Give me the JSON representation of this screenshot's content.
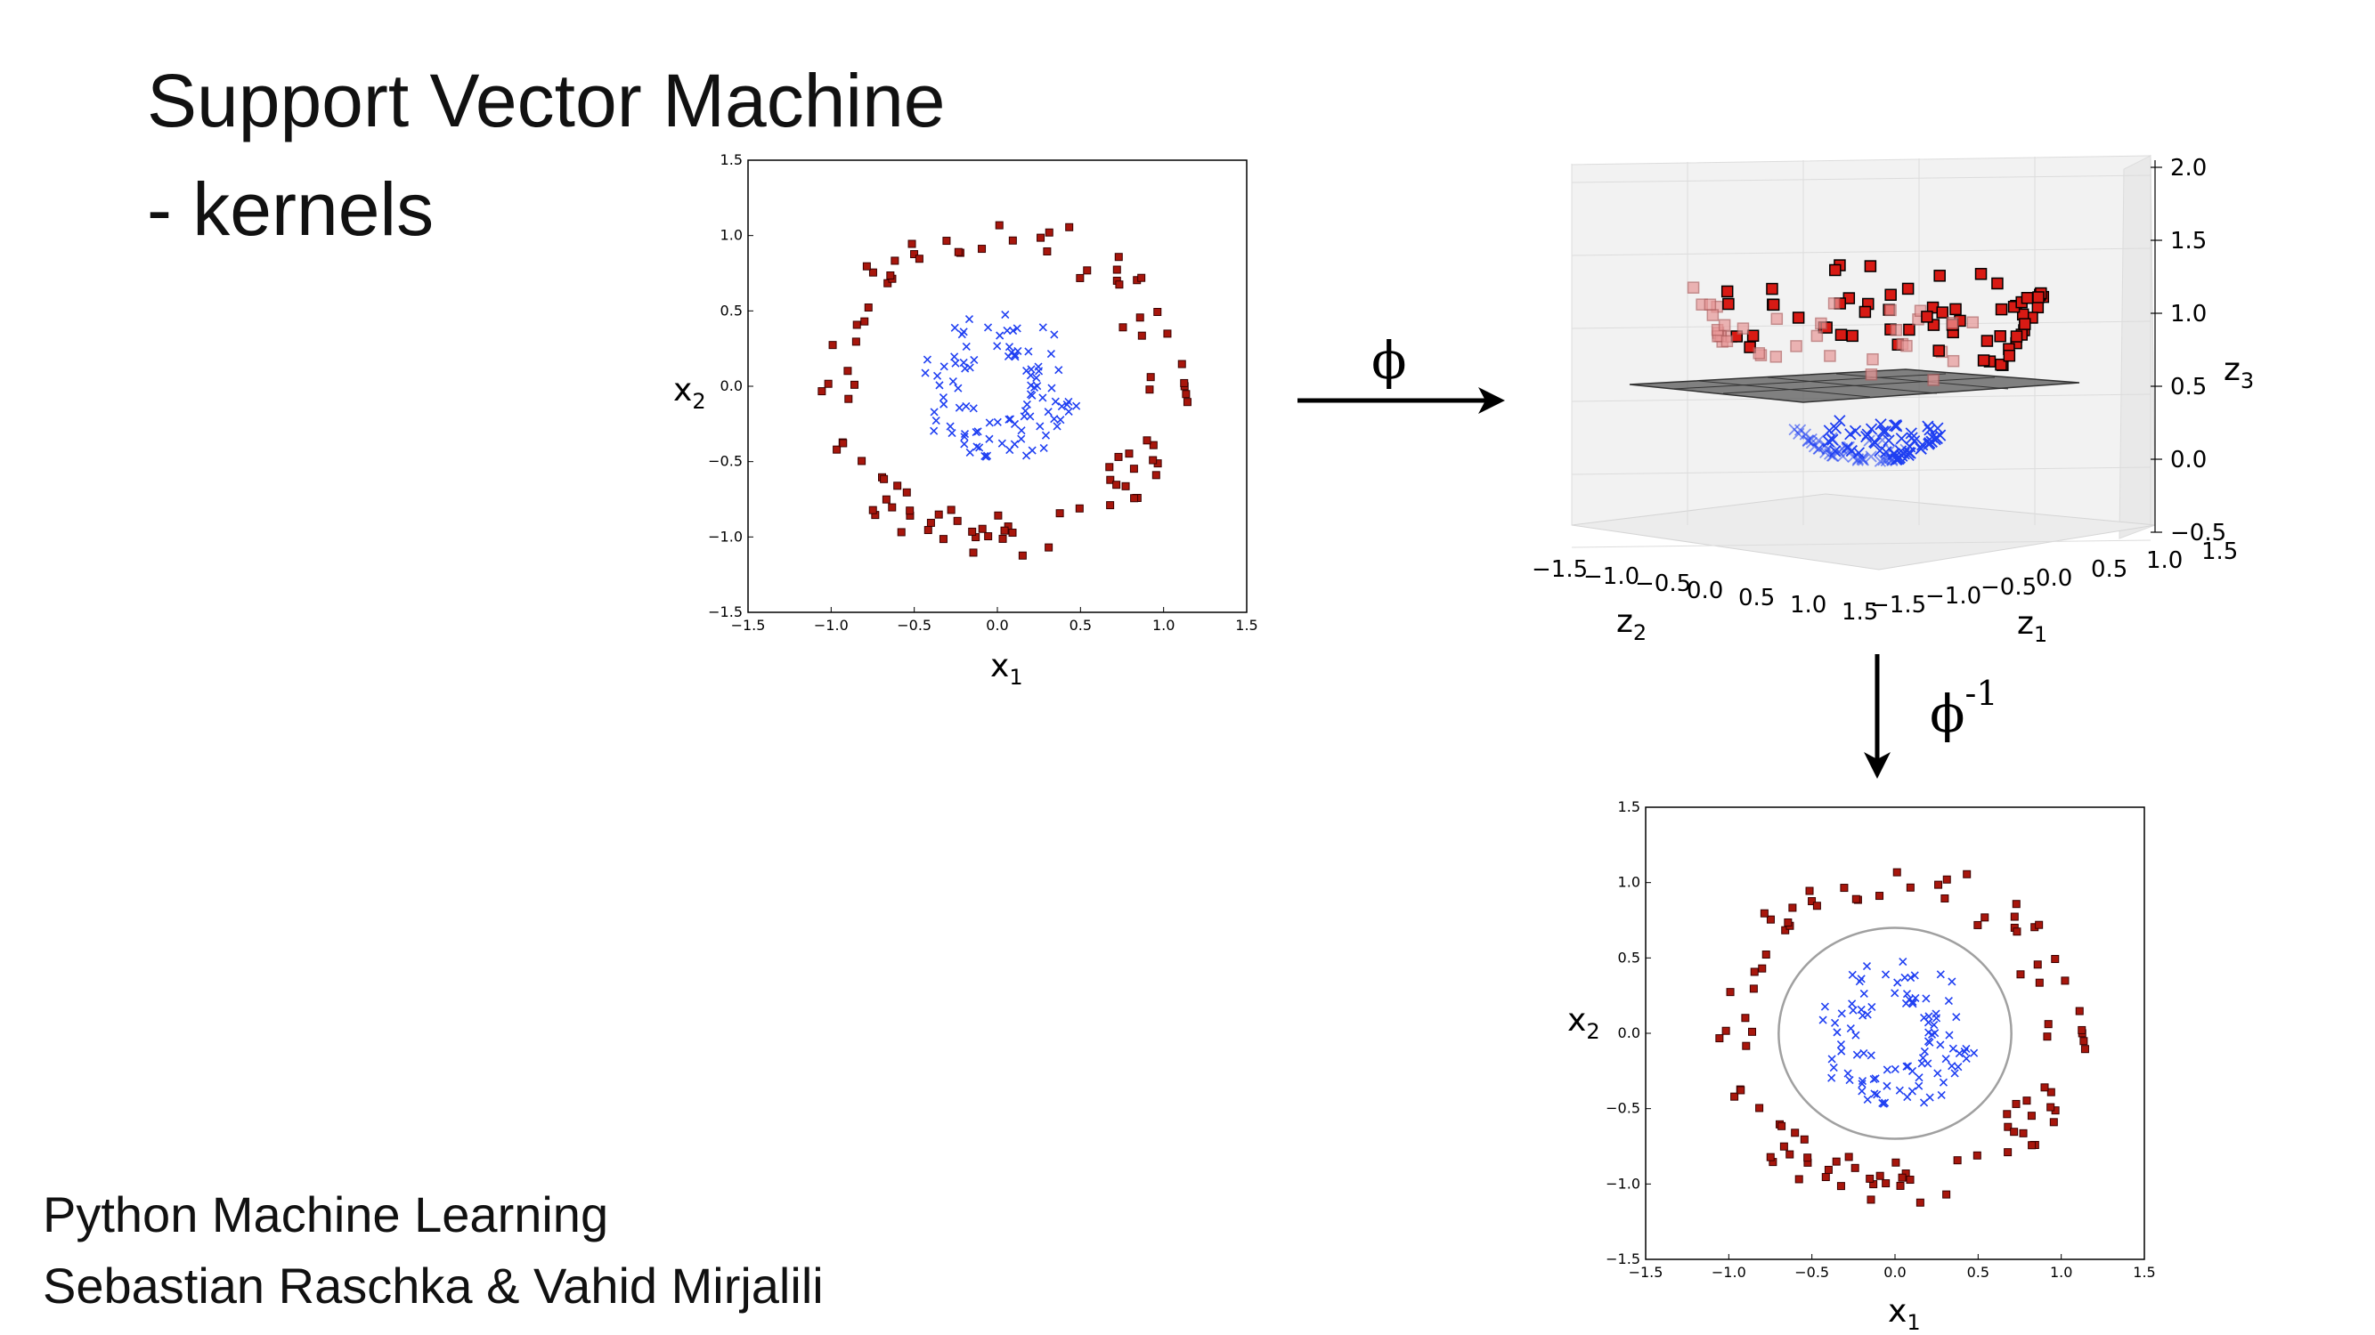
{
  "title": {
    "line1": "Support Vector Machine",
    "line2": "- kernels"
  },
  "credits": {
    "line1": "Python Machine Learning",
    "line2": "Sebastian Raschka & Vahid Mirjalili"
  },
  "arrows": {
    "forward_label": "ϕ",
    "inverse_label": "ϕ",
    "inverse_sup": "-1"
  },
  "colors": {
    "outer_class": "#a8160c",
    "inner_class": "#1f3ff2",
    "boundary": "#a0a0a0",
    "plane": "#5a5a5a"
  },
  "chart_data": [
    {
      "id": "input-space",
      "type": "scatter",
      "xlabel": "x",
      "xlabel_sub": "1",
      "ylabel": "x",
      "ylabel_sub": "2",
      "xlim": [
        -1.5,
        1.5
      ],
      "ylim": [
        -1.5,
        1.5
      ],
      "xticks": [
        "−1.5",
        "−1.0",
        "−0.5",
        "0.0",
        "0.5",
        "1.0",
        "1.5"
      ],
      "yticks": [
        "−1.5",
        "−1.0",
        "−0.5",
        "0.0",
        "0.5",
        "1.0",
        "1.5"
      ],
      "series": [
        {
          "marker": "square",
          "color": "#a8160c",
          "radius_min": 0.85,
          "radius_max": 1.15,
          "count": 100
        },
        {
          "marker": "x",
          "color": "#1f3ff2",
          "radius_min": 0.2,
          "radius_max": 0.5,
          "count": 100
        }
      ]
    },
    {
      "id": "feature-space",
      "type": "scatter3d",
      "xlabel": "z",
      "xlabel_sub": "2",
      "ylabel": "z",
      "ylabel_sub": "1",
      "zlabel": "z",
      "zlabel_sub": "3",
      "z2_ticks": [
        "−1.5",
        "−1.0",
        "−0.5",
        "0.0",
        "0.5",
        "1.0",
        "1.5"
      ],
      "z1_ticks": [
        "−1.5",
        "−1.0",
        "−0.5",
        "0.0",
        "0.5",
        "1.0",
        "1.5"
      ],
      "z3_ticks": [
        "−0.5",
        "0.0",
        "0.5",
        "1.0",
        "1.5",
        "2.0"
      ],
      "separating_plane_z3": 0.6
    },
    {
      "id": "decision-boundary",
      "type": "scatter",
      "xlabel": "x",
      "xlabel_sub": "1",
      "ylabel": "x",
      "ylabel_sub": "2",
      "xlim": [
        -1.5,
        1.5
      ],
      "ylim": [
        -1.5,
        1.5
      ],
      "xticks": [
        "−1.5",
        "−1.0",
        "−0.5",
        "0.0",
        "0.5",
        "1.0",
        "1.5"
      ],
      "yticks": [
        "−1.5",
        "−1.0",
        "−0.5",
        "0.0",
        "0.5",
        "1.0",
        "1.5"
      ],
      "boundary_radius": 0.7,
      "series": [
        {
          "marker": "square",
          "color": "#a8160c",
          "radius_min": 0.85,
          "radius_max": 1.15,
          "count": 100
        },
        {
          "marker": "x",
          "color": "#1f3ff2",
          "radius_min": 0.2,
          "radius_max": 0.5,
          "count": 100
        }
      ]
    }
  ]
}
